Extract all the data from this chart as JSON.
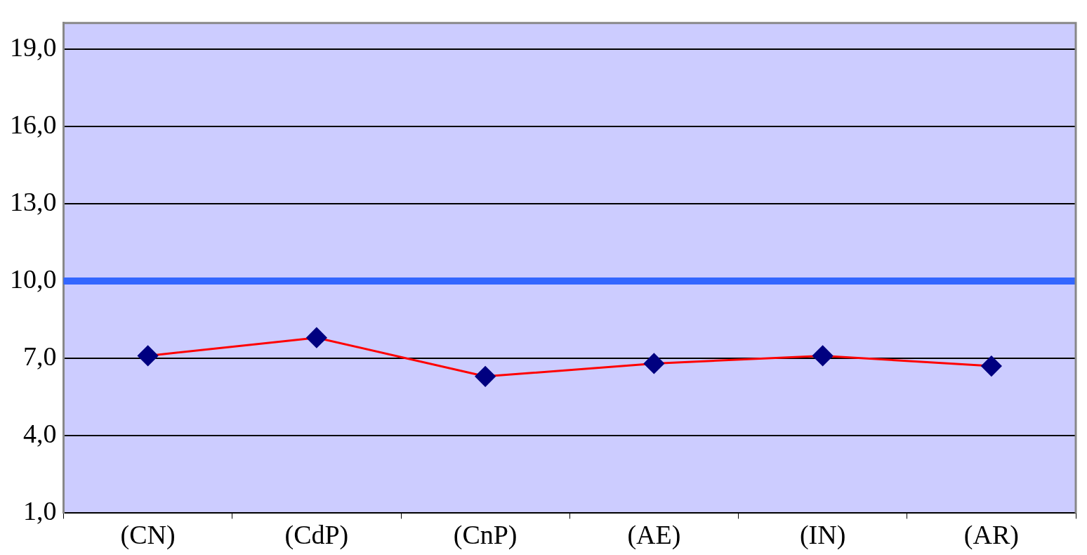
{
  "chart_data": {
    "type": "line",
    "categories": [
      "(CN)",
      "(CdP)",
      "(CnP)",
      "(AE)",
      "(IN)",
      "(AR)"
    ],
    "series": [
      {
        "color": "#ff0000",
        "values": [
          7.1,
          7.8,
          6.3,
          6.8,
          7.1,
          6.7
        ]
      }
    ],
    "ylim": [
      1,
      20
    ],
    "yticks": [
      {
        "value": 1,
        "label": "1,0"
      },
      {
        "value": 4,
        "label": "4,0"
      },
      {
        "value": 7,
        "label": "7,0"
      },
      {
        "value": 10,
        "label": "10,0"
      },
      {
        "value": 13,
        "label": "13,0"
      },
      {
        "value": 16,
        "label": "16,0"
      },
      {
        "value": 19,
        "label": "19,0"
      }
    ],
    "ref_lines": [
      {
        "axis": "y",
        "value": 10,
        "color": "#3366ff"
      }
    ],
    "grid": "y",
    "legend": false,
    "marker": "diamond",
    "line_style": "solid"
  }
}
